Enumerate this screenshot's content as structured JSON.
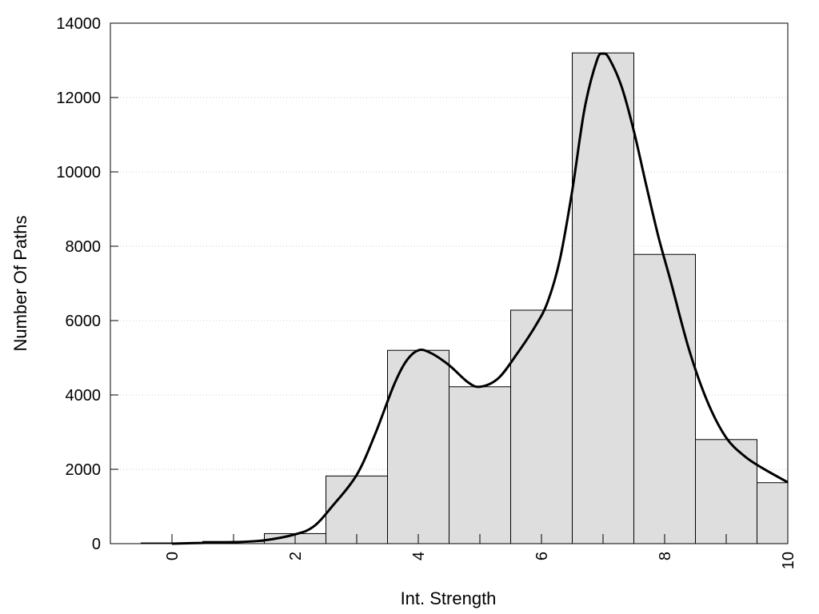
{
  "chart_data": {
    "type": "bar",
    "subtype": "histogram-with-density-curve",
    "title": "",
    "xlabel": "Int. Strength",
    "ylabel": "Number Of Paths",
    "xlim": [
      -1,
      10
    ],
    "ylim": [
      0,
      14000
    ],
    "grid": {
      "horizontal": true,
      "vertical": false,
      "style": "dotted"
    },
    "legend": "none",
    "bar_color": "#dedede",
    "edge_color": "#000000",
    "line_color": "#000000",
    "x_ticks": [
      0,
      2,
      4,
      6,
      8,
      10
    ],
    "y_ticks": [
      0,
      2000,
      4000,
      6000,
      8000,
      10000,
      12000,
      14000
    ],
    "bins": [
      {
        "start": -0.5,
        "end": 0.5,
        "value": 20
      },
      {
        "start": 0.5,
        "end": 1.5,
        "value": 60
      },
      {
        "start": 1.5,
        "end": 2.5,
        "value": 270
      },
      {
        "start": 2.5,
        "end": 3.5,
        "value": 1820
      },
      {
        "start": 3.5,
        "end": 4.5,
        "value": 5200
      },
      {
        "start": 4.5,
        "end": 5.5,
        "value": 4220
      },
      {
        "start": 5.5,
        "end": 6.5,
        "value": 6280
      },
      {
        "start": 6.5,
        "end": 7.5,
        "value": 13200
      },
      {
        "start": 7.5,
        "end": 8.5,
        "value": 7780
      },
      {
        "start": 8.5,
        "end": 9.5,
        "value": 2800
      },
      {
        "start": 9.5,
        "end": 10,
        "value": 1640
      }
    ],
    "curve": {
      "x": [
        0,
        0.5,
        1,
        1.5,
        2,
        2.3,
        2.6,
        3,
        3.3,
        3.6,
        3.8,
        4,
        4.2,
        4.5,
        4.8,
        5,
        5.3,
        5.6,
        5.9,
        6.1,
        6.3,
        6.5,
        6.7,
        6.9,
        7,
        7.1,
        7.3,
        7.5,
        7.7,
        7.9,
        8.1,
        8.4,
        8.7,
        9,
        9.3,
        9.6,
        10
      ],
      "y": [
        0,
        20,
        40,
        90,
        250,
        460,
        1000,
        1850,
        2950,
        4250,
        4900,
        5200,
        5130,
        4800,
        4350,
        4220,
        4450,
        5100,
        5850,
        6500,
        7650,
        9500,
        11700,
        13000,
        13180,
        13050,
        12300,
        11100,
        9650,
        8250,
        7050,
        5200,
        3800,
        2850,
        2350,
        2020,
        1650
      ]
    }
  }
}
